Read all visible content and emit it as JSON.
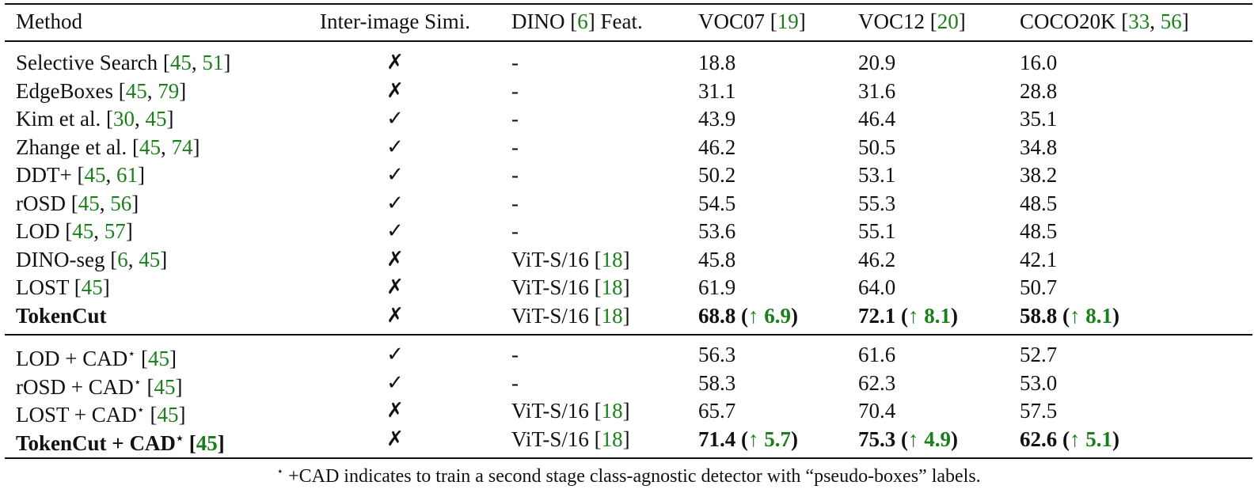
{
  "headers": [
    "Method",
    "Inter-image Simi.",
    "DINO [6] Feat.",
    "VOC07 [19]",
    "VOC12  [20]",
    "COCO20K [33, 56]"
  ],
  "check_mark": "✓",
  "cross_mark": "✗",
  "group1": [
    {
      "method": "Selective Search",
      "refs": "45, 51",
      "sim": "cross",
      "feat": "-",
      "v07": "18.8",
      "v12": "20.9",
      "coco": "16.0"
    },
    {
      "method": "EdgeBoxes",
      "refs": "45, 79",
      "sim": "cross",
      "feat": "-",
      "v07": "31.1",
      "v12": "31.6",
      "coco": "28.8"
    },
    {
      "method": "Kim et al.",
      "refs": "30, 45",
      "sim": "check",
      "feat": "-",
      "v07": "43.9",
      "v12": "46.4",
      "coco": "35.1"
    },
    {
      "method": "Zhange et al.",
      "refs": "45, 74",
      "sim": "check",
      "feat": "-",
      "v07": "46.2",
      "v12": "50.5",
      "coco": "34.8"
    },
    {
      "method": "DDT+",
      "refs": "45, 61",
      "sim": "check",
      "feat": "-",
      "v07": "50.2",
      "v12": "53.1",
      "coco": "38.2"
    },
    {
      "method": "rOSD",
      "refs": "45, 56",
      "sim": "check",
      "feat": "-",
      "v07": "54.5",
      "v12": "55.3",
      "coco": "48.5"
    },
    {
      "method": "LOD",
      "refs": "45, 57",
      "sim": "check",
      "feat": "-",
      "v07": "53.6",
      "v12": "55.1",
      "coco": "48.5"
    },
    {
      "method": "DINO-seg",
      "refs": "6, 45",
      "sim": "cross",
      "feat": "ViT-S/16",
      "featref": "18",
      "v07": "45.8",
      "v12": "46.2",
      "coco": "42.1"
    },
    {
      "method": "LOST",
      "refs": "45",
      "sim": "cross",
      "feat": "ViT-S/16",
      "featref": "18",
      "v07": "61.9",
      "v12": "64.0",
      "coco": "50.7"
    },
    {
      "method": "TokenCut",
      "refs": "",
      "bold": true,
      "sim": "cross",
      "feat": "ViT-S/16",
      "featref": "18",
      "v07": "68.8",
      "v07_gain": "6.9",
      "v12": "72.1",
      "v12_gain": "8.1",
      "coco": "58.8",
      "coco_gain": "8.1"
    }
  ],
  "group2": [
    {
      "method": "LOD + CAD",
      "star": "⋆",
      "refs": "45",
      "sim": "check",
      "feat": "-",
      "v07": "56.3",
      "v12": "61.6",
      "coco": "52.7"
    },
    {
      "method": "rOSD + CAD",
      "star": "⋆",
      "refs": "45",
      "sim": "check",
      "feat": "-",
      "v07": "58.3",
      "v12": "62.3",
      "coco": "53.0"
    },
    {
      "method": "LOST + CAD",
      "star": "⋆",
      "refs": "45",
      "sim": "cross",
      "feat": "ViT-S/16",
      "featref": "18",
      "v07": "65.7",
      "v12": "70.4",
      "coco": "57.5"
    },
    {
      "method": "TokenCut + CAD",
      "star": "⋆",
      "refs": "45",
      "bold": true,
      "sim": "cross",
      "feat": "ViT-S/16",
      "featref": "18",
      "v07": "71.4",
      "v07_gain": "5.7",
      "v12": "75.3",
      "v12_gain": "4.9",
      "coco": "62.6",
      "coco_gain": "5.1"
    }
  ],
  "gain_arrow": "↑",
  "footnote": {
    "star": "⋆",
    "text": "+CAD indicates to train a second stage class-agnostic detector with “pseudo-boxes” labels."
  },
  "colors": {
    "ref_green": "#1a7f1a"
  }
}
